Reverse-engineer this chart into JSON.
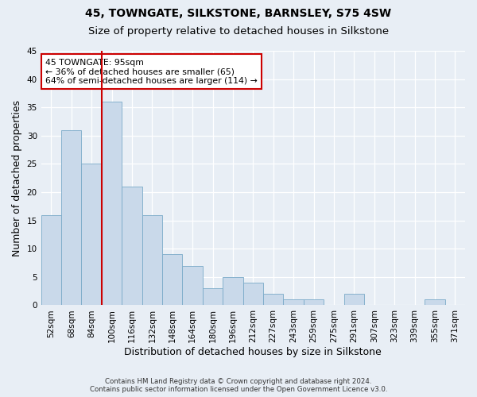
{
  "title": "45, TOWNGATE, SILKSTONE, BARNSLEY, S75 4SW",
  "subtitle": "Size of property relative to detached houses in Silkstone",
  "xlabel": "Distribution of detached houses by size in Silkstone",
  "ylabel": "Number of detached properties",
  "categories": [
    "52sqm",
    "68sqm",
    "84sqm",
    "100sqm",
    "116sqm",
    "132sqm",
    "148sqm",
    "164sqm",
    "180sqm",
    "196sqm",
    "212sqm",
    "227sqm",
    "243sqm",
    "259sqm",
    "275sqm",
    "291sqm",
    "307sqm",
    "323sqm",
    "339sqm",
    "355sqm",
    "371sqm"
  ],
  "values": [
    16,
    31,
    25,
    36,
    21,
    16,
    9,
    7,
    3,
    5,
    4,
    2,
    1,
    1,
    0,
    2,
    0,
    0,
    0,
    1,
    0
  ],
  "bar_color": "#c9d9ea",
  "bar_edge_color": "#7aaac8",
  "ylim": [
    0,
    45
  ],
  "yticks": [
    0,
    5,
    10,
    15,
    20,
    25,
    30,
    35,
    40,
    45
  ],
  "vline_color": "#cc0000",
  "annotation_text": "45 TOWNGATE: 95sqm\n← 36% of detached houses are smaller (65)\n64% of semi-detached houses are larger (114) →",
  "annotation_box_color": "#ffffff",
  "annotation_box_edge": "#cc0000",
  "footer_line1": "Contains HM Land Registry data © Crown copyright and database right 2024.",
  "footer_line2": "Contains public sector information licensed under the Open Government Licence v3.0.",
  "background_color": "#e8eef5",
  "plot_bg_color": "#e8eef5",
  "title_fontsize": 10,
  "subtitle_fontsize": 9.5,
  "tick_fontsize": 7.5,
  "ylabel_fontsize": 9,
  "xlabel_fontsize": 9
}
